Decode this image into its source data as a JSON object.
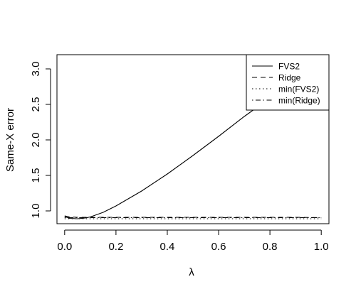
{
  "chart_data": {
    "type": "line",
    "xlabel": "λ",
    "ylabel": "Same-X error",
    "xlim": [
      -0.03,
      1.03
    ],
    "ylim": [
      0.82,
      3.2
    ],
    "x_ticks": [
      0.0,
      0.2,
      0.4,
      0.6,
      0.8,
      1.0
    ],
    "x_tick_labels": [
      "0.0",
      "0.2",
      "0.4",
      "0.6",
      "0.8",
      "1.0"
    ],
    "y_ticks": [
      1.0,
      1.5,
      2.0,
      2.5,
      3.0
    ],
    "y_tick_labels": [
      "1.0",
      "1.5",
      "2.0",
      "2.5",
      "3.0"
    ],
    "grid": false,
    "legend_position": "top-right",
    "legend": [
      {
        "label": "FVS2",
        "style": "solid"
      },
      {
        "label": "Ridge",
        "style": "dashed"
      },
      {
        "label": "min(FVS2)",
        "style": "dotted"
      },
      {
        "label": "min(Ridge)",
        "style": "dotdash"
      }
    ],
    "series": [
      {
        "name": "FVS2",
        "style": "solid",
        "x": [
          0.0,
          0.02,
          0.05,
          0.08,
          0.1,
          0.15,
          0.2,
          0.3,
          0.4,
          0.5,
          0.6,
          0.7,
          0.75
        ],
        "y": [
          0.92,
          0.895,
          0.89,
          0.9,
          0.915,
          0.98,
          1.07,
          1.28,
          1.52,
          1.78,
          2.05,
          2.33,
          2.46
        ]
      },
      {
        "name": "Ridge",
        "style": "dashed",
        "x": [
          0.0,
          0.02,
          0.05,
          0.1,
          0.2,
          0.3,
          0.4,
          0.5,
          0.6,
          0.7,
          0.8,
          0.9,
          1.0
        ],
        "y": [
          0.93,
          0.915,
          0.91,
          0.91,
          0.91,
          0.91,
          0.91,
          0.91,
          0.91,
          0.91,
          0.91,
          0.91,
          0.905
        ]
      },
      {
        "name": "min(FVS2)",
        "style": "dotted",
        "x": [
          0.0,
          1.0
        ],
        "y": [
          0.89,
          0.89
        ]
      },
      {
        "name": "min(Ridge)",
        "style": "dotdash",
        "x": [
          0.0,
          1.0
        ],
        "y": [
          0.905,
          0.905
        ]
      }
    ]
  }
}
